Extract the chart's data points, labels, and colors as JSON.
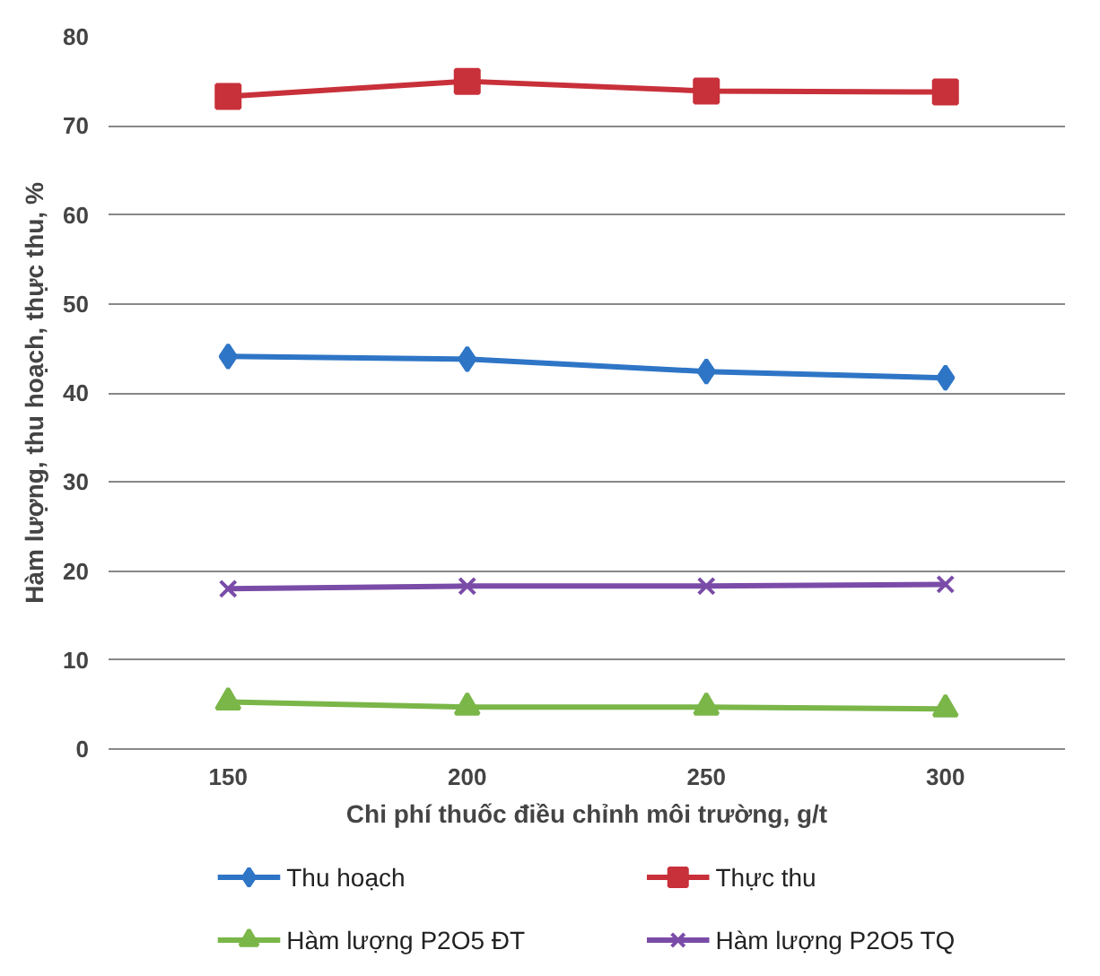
{
  "chart_data": {
    "type": "line",
    "xlabel": "Chi phí thuốc điều chỉnh môi trường, g/t",
    "ylabel": "Hàm lượng, thu hoạch, thực thu, %",
    "categories": [
      "150",
      "200",
      "250",
      "300"
    ],
    "series": [
      {
        "name": "Thu hoạch",
        "color": "#2e75c6",
        "marker": "diamond",
        "values": [
          44.1,
          43.8,
          42.4,
          41.7
        ]
      },
      {
        "name": "Thực thu",
        "color": "#c8303a",
        "marker": "square",
        "values": [
          73.3,
          75.0,
          73.9,
          73.8
        ]
      },
      {
        "name": "Hàm lượng P2O5 ĐT",
        "color": "#7ab648",
        "marker": "triangle",
        "values": [
          5.3,
          4.7,
          4.7,
          4.5
        ]
      },
      {
        "name": "Hàm lượng P2O5 TQ",
        "color": "#7a4ca8",
        "marker": "cross",
        "values": [
          18.0,
          18.3,
          18.3,
          18.5
        ]
      }
    ],
    "ylim": [
      0,
      80
    ],
    "yticks": [
      0,
      10,
      20,
      30,
      40,
      50,
      60,
      70,
      80
    ],
    "grid": "y",
    "legend": "bottom",
    "line_style": "solid"
  }
}
